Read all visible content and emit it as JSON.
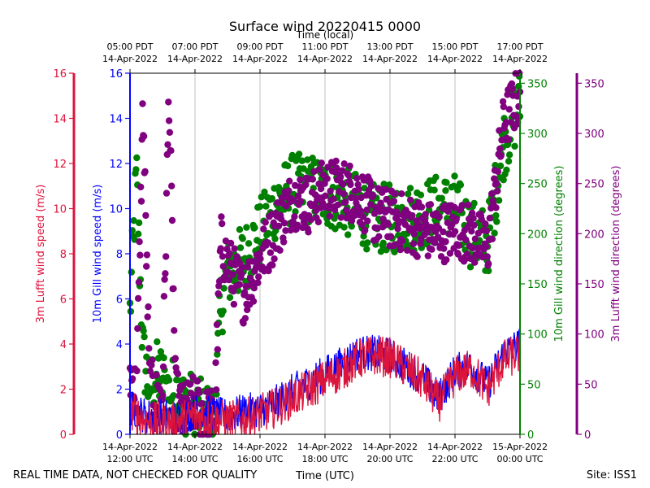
{
  "footer": {
    "left_note": "REAL TIME DATA, NOT CHECKED FOR QUALITY",
    "site": "Site: ISS1"
  },
  "colors": {
    "gill_speed": "#0000ff",
    "lufft_speed": "#dc143c",
    "gill_dir": "#008000",
    "lufft_dir": "#800080",
    "grid": "#b0b0b0",
    "axis": "#000000"
  },
  "chart_data": {
    "type": "line+scatter",
    "title": "Surface wind 20220415 0000",
    "xlabel_bottom": "Time (UTC)",
    "xlabel_top": "Time (local)",
    "xlim_hours_since_1200utc": [
      0,
      12
    ],
    "bottom_ticks": [
      {
        "h": 0,
        "l1": "14-Apr-2022",
        "l2": "12:00 UTC"
      },
      {
        "h": 2,
        "l1": "14-Apr-2022",
        "l2": "14:00 UTC"
      },
      {
        "h": 4,
        "l1": "14-Apr-2022",
        "l2": "16:00 UTC"
      },
      {
        "h": 6,
        "l1": "14-Apr-2022",
        "l2": "18:00 UTC"
      },
      {
        "h": 8,
        "l1": "14-Apr-2022",
        "l2": "20:00 UTC"
      },
      {
        "h": 10,
        "l1": "14-Apr-2022",
        "l2": "22:00 UTC"
      },
      {
        "h": 12,
        "l1": "15-Apr-2022",
        "l2": "00:00 UTC"
      }
    ],
    "top_ticks": [
      {
        "h": 0,
        "l1": "05:00 PDT",
        "l2": "14-Apr-2022"
      },
      {
        "h": 2,
        "l1": "07:00 PDT",
        "l2": "14-Apr-2022"
      },
      {
        "h": 4,
        "l1": "09:00 PDT",
        "l2": "14-Apr-2022"
      },
      {
        "h": 6,
        "l1": "11:00 PDT",
        "l2": "14-Apr-2022"
      },
      {
        "h": 8,
        "l1": "13:00 PDT",
        "l2": "14-Apr-2022"
      },
      {
        "h": 10,
        "l1": "15:00 PDT",
        "l2": "14-Apr-2022"
      },
      {
        "h": 12,
        "l1": "17:00 PDT",
        "l2": "14-Apr-2022"
      }
    ],
    "axes": {
      "lufft_speed": {
        "label": "3m Lufft wind speed (m/s)",
        "ylim": [
          0,
          16
        ],
        "ticks": [
          "0",
          "2",
          "4",
          "6",
          "8",
          "10",
          "12",
          "14",
          "16"
        ]
      },
      "gill_speed": {
        "label": "10m Gill wind speed (m/s)",
        "ylim": [
          0,
          16
        ],
        "ticks": [
          "0",
          "2",
          "4",
          "6",
          "8",
          "10",
          "12",
          "14",
          "16"
        ]
      },
      "gill_dir": {
        "label": "10m Gill wind direction (degrees)",
        "ylim": [
          0,
          360
        ],
        "ticks": [
          "0",
          "50",
          "100",
          "150",
          "200",
          "250",
          "300",
          "350"
        ]
      },
      "lufft_dir": {
        "label": "3m Lufft wind direction (degrees)",
        "ylim": [
          0,
          360
        ],
        "ticks": [
          "0",
          "50",
          "100",
          "150",
          "200",
          "250",
          "300",
          "350"
        ]
      }
    },
    "series": [
      {
        "name": "10m Gill wind speed",
        "kind": "line",
        "hours": [
          0,
          0.5,
          1,
          1.5,
          2,
          2.5,
          3,
          3.5,
          4,
          4.5,
          5,
          5.5,
          6,
          6.5,
          7,
          7.5,
          8,
          8.5,
          9,
          9.5,
          10,
          10.5,
          11,
          11.5,
          12
        ],
        "values": [
          1.2,
          0.8,
          0.8,
          0.7,
          1.0,
          0.9,
          0.8,
          1.0,
          1.1,
          1.4,
          1.9,
          2.3,
          2.7,
          3.1,
          3.6,
          3.6,
          3.5,
          3.0,
          2.5,
          1.6,
          2.8,
          3.0,
          2.2,
          3.6,
          4.0
        ],
        "noise": 0.8
      },
      {
        "name": "3m Lufft wind speed",
        "kind": "line",
        "hours": [
          0,
          0.5,
          1,
          1.5,
          2,
          2.5,
          3,
          3.5,
          4,
          4.5,
          5,
          5.5,
          6,
          6.5,
          7,
          7.5,
          8,
          8.5,
          9,
          9.5,
          10,
          10.5,
          11,
          11.5,
          12
        ],
        "values": [
          1.0,
          0.6,
          0.5,
          0.6,
          0.8,
          0.7,
          0.6,
          0.7,
          0.9,
          1.2,
          1.6,
          2.0,
          2.4,
          2.8,
          3.3,
          3.5,
          3.4,
          2.9,
          2.4,
          1.4,
          2.6,
          2.9,
          2.0,
          3.3,
          3.6
        ],
        "noise": 0.9
      },
      {
        "name": "10m Gill wind direction",
        "kind": "scatter",
        "hours": [
          0,
          0.2,
          0.4,
          0.6,
          0.8,
          1,
          1.2,
          1.4,
          1.6,
          1.8,
          2,
          2.2,
          2.4,
          2.6,
          2.8,
          3,
          3.5,
          4,
          4.5,
          5,
          5.5,
          6,
          6.5,
          7,
          7.5,
          8,
          8.5,
          9,
          9.5,
          10,
          10.5,
          11,
          11.5,
          12
        ],
        "values": [
          120,
          260,
          80,
          45,
          60,
          55,
          40,
          45,
          30,
          30,
          25,
          20,
          15,
          20,
          130,
          160,
          175,
          200,
          230,
          245,
          245,
          240,
          235,
          225,
          215,
          215,
          215,
          220,
          225,
          225,
          200,
          190,
          290,
          330
        ],
        "noise": 35
      },
      {
        "name": "3m Lufft wind direction",
        "kind": "scatter",
        "hours": [
          0,
          0.2,
          0.4,
          0.6,
          0.8,
          1,
          1.2,
          1.4,
          1.6,
          1.8,
          2,
          2.2,
          2.4,
          2.6,
          2.8,
          3,
          3.5,
          4,
          4.5,
          5,
          5.5,
          6,
          6.5,
          7,
          7.5,
          8,
          8.5,
          9,
          9.5,
          10,
          10.5,
          11,
          11.5,
          12
        ],
        "values": [
          60,
          40,
          330,
          50,
          35,
          40,
          345,
          40,
          20,
          25,
          30,
          25,
          15,
          20,
          190,
          170,
          140,
          175,
          205,
          235,
          230,
          245,
          245,
          240,
          220,
          215,
          210,
          205,
          200,
          205,
          200,
          185,
          310,
          340
        ],
        "noise": 30
      }
    ]
  }
}
